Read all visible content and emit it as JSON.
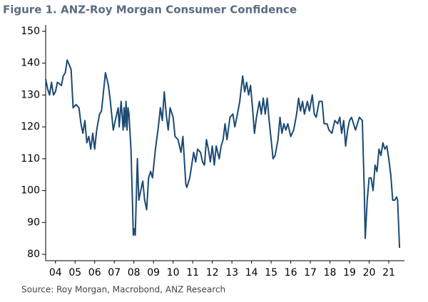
{
  "chart_data": {
    "type": "line",
    "title": "Figure 1.  ANZ-Roy Morgan Consumer Confidence",
    "source": "Source: Roy Morgan, Macrobond, ANZ Research",
    "color": "#1b4a72",
    "xlim": [
      2004,
      2022.3
    ],
    "ylim": [
      78,
      152
    ],
    "yticks": [
      80,
      90,
      100,
      110,
      120,
      130,
      140,
      150
    ],
    "xticks": [
      {
        "value": 2004.5,
        "label": "04"
      },
      {
        "value": 2005.5,
        "label": "05"
      },
      {
        "value": 2006.5,
        "label": "06"
      },
      {
        "value": 2007.5,
        "label": "07"
      },
      {
        "value": 2008.5,
        "label": "08"
      },
      {
        "value": 2009.5,
        "label": "09"
      },
      {
        "value": 2010.5,
        "label": "10"
      },
      {
        "value": 2011.5,
        "label": "11"
      },
      {
        "value": 2012.5,
        "label": "12"
      },
      {
        "value": 2013.5,
        "label": "13"
      },
      {
        "value": 2014.5,
        "label": "14"
      },
      {
        "value": 2015.5,
        "label": "15"
      },
      {
        "value": 2016.5,
        "label": "16"
      },
      {
        "value": 2017.5,
        "label": "17"
      },
      {
        "value": 2018.5,
        "label": "18"
      },
      {
        "value": 2019.5,
        "label": "19"
      },
      {
        "value": 2020.5,
        "label": "20"
      },
      {
        "value": 2021.5,
        "label": "21"
      }
    ],
    "grid": false,
    "x": [
      2004.0,
      2004.1,
      2004.2,
      2004.3,
      2004.4,
      2004.5,
      2004.6,
      2004.8,
      2004.9,
      2005.0,
      2005.1,
      2005.3,
      2005.4,
      2005.55,
      2005.7,
      2005.8,
      2005.9,
      2006.0,
      2006.1,
      2006.2,
      2006.3,
      2006.4,
      2006.5,
      2006.6,
      2006.75,
      2006.85,
      2007.05,
      2007.2,
      2007.3,
      2007.45,
      2007.55,
      2007.7,
      2007.75,
      2007.85,
      2007.95,
      2008.0,
      2008.05,
      2008.1,
      2008.15,
      2008.2,
      2008.25,
      2008.35,
      2008.42,
      2008.47,
      2008.52,
      2008.57,
      2008.68,
      2008.75,
      2008.85,
      2008.95,
      2009.05,
      2009.15,
      2009.25,
      2009.35,
      2009.45,
      2009.6,
      2009.75,
      2009.85,
      2009.95,
      2010.05,
      2010.15,
      2010.25,
      2010.35,
      2010.5,
      2010.6,
      2010.75,
      2010.9,
      2011.0,
      2011.15,
      2011.2,
      2011.35,
      2011.55,
      2011.65,
      2011.75,
      2011.9,
      2012.0,
      2012.1,
      2012.2,
      2012.3,
      2012.4,
      2012.5,
      2012.6,
      2012.7,
      2012.85,
      2012.95,
      2013.05,
      2013.15,
      2013.25,
      2013.4,
      2013.55,
      2013.65,
      2013.75,
      2013.9,
      2014.05,
      2014.15,
      2014.25,
      2014.35,
      2014.45,
      2014.55,
      2014.65,
      2014.75,
      2014.9,
      2015.0,
      2015.1,
      2015.2,
      2015.3,
      2015.4,
      2015.5,
      2015.6,
      2015.7,
      2015.85,
      2015.95,
      2016.05,
      2016.15,
      2016.25,
      2016.35,
      2016.5,
      2016.65,
      2016.8,
      2016.9,
      2017.0,
      2017.1,
      2017.2,
      2017.35,
      2017.45,
      2017.6,
      2017.7,
      2017.8,
      2017.95,
      2018.1,
      2018.2,
      2018.35,
      2018.45,
      2018.6,
      2018.75,
      2018.9,
      2019.0,
      2019.1,
      2019.2,
      2019.3,
      2019.4,
      2019.5,
      2019.6,
      2019.8,
      2020.0,
      2020.15,
      2020.25,
      2020.3,
      2020.4,
      2020.5,
      2020.6,
      2020.7,
      2020.8,
      2020.9,
      2021.0,
      2021.1,
      2021.2,
      2021.3,
      2021.4,
      2021.5,
      2021.6,
      2021.7,
      2021.8,
      2021.9,
      2021.95,
      2022.05
    ],
    "values": [
      135,
      132,
      130,
      134,
      130,
      131,
      134,
      133,
      136,
      137,
      141,
      138,
      126,
      127,
      126,
      121,
      118,
      122,
      115,
      117,
      113,
      118,
      113,
      119,
      124,
      125,
      137,
      133,
      128,
      119,
      122,
      126,
      120,
      128,
      119,
      126,
      120,
      128,
      119,
      126,
      124,
      113,
      98,
      86,
      88,
      86,
      110,
      97,
      100,
      103,
      97,
      94,
      104,
      106,
      104,
      113,
      120,
      126,
      122,
      131,
      124,
      119,
      126,
      123,
      117,
      116,
      112,
      117,
      102,
      101,
      104,
      112,
      109,
      113,
      112,
      109,
      108,
      116,
      113,
      109,
      114,
      108,
      114,
      110,
      114,
      116,
      121,
      116,
      123,
      124,
      120,
      123,
      128,
      136,
      131,
      134,
      130,
      133,
      126,
      118,
      123,
      128,
      124,
      129,
      124,
      129,
      122,
      116,
      110,
      111,
      116,
      123,
      118,
      121,
      119,
      121,
      117,
      119,
      124,
      129,
      125,
      128,
      124,
      128,
      125,
      130,
      124,
      123,
      128,
      128,
      121,
      121,
      119,
      118,
      122,
      121,
      123,
      118,
      122,
      114,
      119,
      122,
      123,
      119,
      123,
      122,
      100,
      85,
      97,
      104,
      104,
      100,
      108,
      106,
      113,
      111,
      115,
      113,
      114,
      110,
      105,
      97,
      97,
      98,
      97,
      82
    ]
  }
}
